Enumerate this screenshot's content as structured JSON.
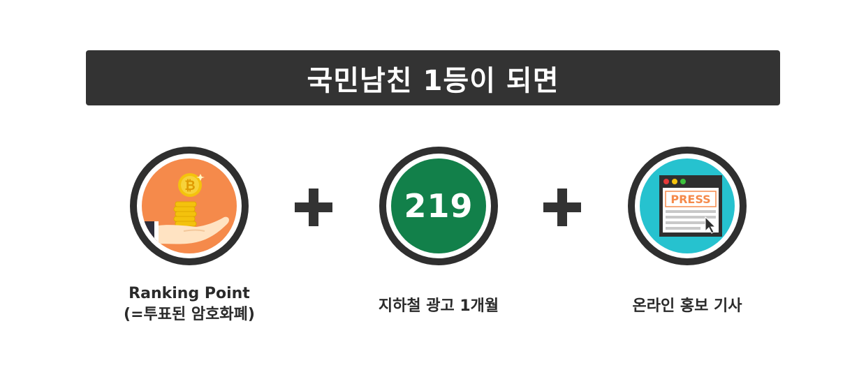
{
  "banner": {
    "title": "국민남친 1등이 되면"
  },
  "items": [
    {
      "icon": "coins-in-hand-icon",
      "caption_line1": "Ranking Point",
      "caption_line2": "(=투표된 암호화폐)"
    },
    {
      "icon": "subway-line-icon",
      "number": "219",
      "caption_line1": "지하철 광고 1개월"
    },
    {
      "icon": "press-browser-icon",
      "press_label": "PRESS",
      "caption_line1": "온라인 홍보 기사"
    }
  ],
  "colors": {
    "banner_bg": "#333333",
    "circle_border": "#2f2f2f",
    "orange": "#f58a4b",
    "green": "#12804a",
    "cyan": "#26c2cf",
    "coin": "#f4c20d"
  }
}
